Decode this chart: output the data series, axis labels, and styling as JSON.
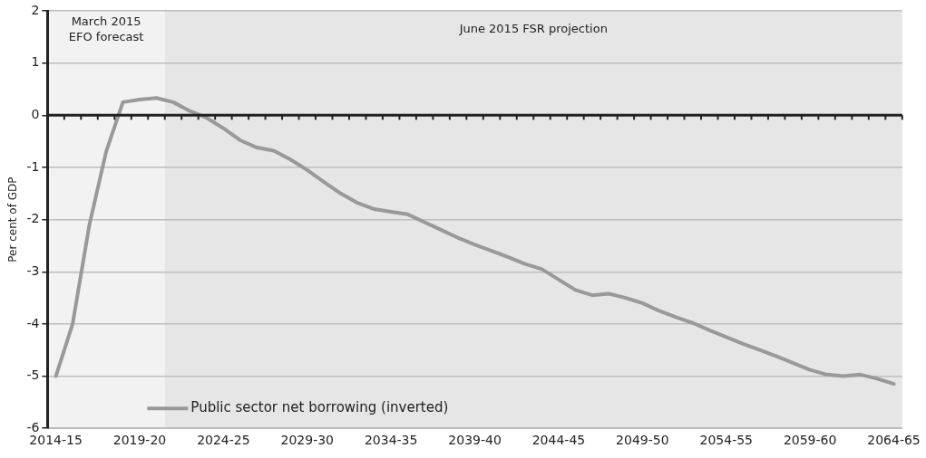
{
  "chart_data": {
    "type": "line",
    "ylabel": "Per cent of GDP",
    "categories": [
      "2014-15",
      null,
      null,
      null,
      null,
      "2019-20",
      null,
      null,
      null,
      null,
      "2024-25",
      null,
      null,
      null,
      null,
      "2029-30",
      null,
      null,
      null,
      null,
      "2034-35",
      null,
      null,
      null,
      null,
      "2039-40",
      null,
      null,
      null,
      null,
      "2044-45",
      null,
      null,
      null,
      null,
      "2049-50",
      null,
      null,
      null,
      null,
      "2054-55",
      null,
      null,
      null,
      null,
      "2059-60",
      null,
      null,
      null,
      null,
      "2064-65"
    ],
    "series": [
      {
        "name": "Public sector net borrowing (inverted)",
        "color": "#999999",
        "values": [
          -5.0,
          -4.0,
          -2.1,
          -0.7,
          0.25,
          0.3,
          0.33,
          0.25,
          0.08,
          -0.05,
          -0.25,
          -0.48,
          -0.62,
          -0.68,
          -0.85,
          -1.05,
          -1.28,
          -1.5,
          -1.68,
          -1.8,
          -1.85,
          -1.9,
          -2.05,
          -2.2,
          -2.35,
          -2.48,
          -2.6,
          -2.72,
          -2.85,
          -2.95,
          -3.15,
          -3.35,
          -3.45,
          -3.42,
          -3.5,
          -3.6,
          -3.75,
          -3.87,
          -3.98,
          -4.12,
          -4.25,
          -4.38,
          -4.5,
          -4.62,
          -4.75,
          -4.88,
          -4.97,
          -5.0,
          -4.97,
          -5.05,
          -5.15
        ]
      }
    ],
    "ylim": [
      -6,
      2
    ],
    "yticks": [
      -6,
      -5,
      -4,
      -3,
      -2,
      -1,
      0,
      1,
      2
    ],
    "grid": "y",
    "legend": "bottom left",
    "marker": "none",
    "line_style": "solid",
    "ref_lines": [
      {
        "axis": "y",
        "value": 0,
        "color": "#222222"
      }
    ],
    "annotations": [
      "March 2015 EFO forecast",
      "June 2015 FSR projection"
    ]
  }
}
